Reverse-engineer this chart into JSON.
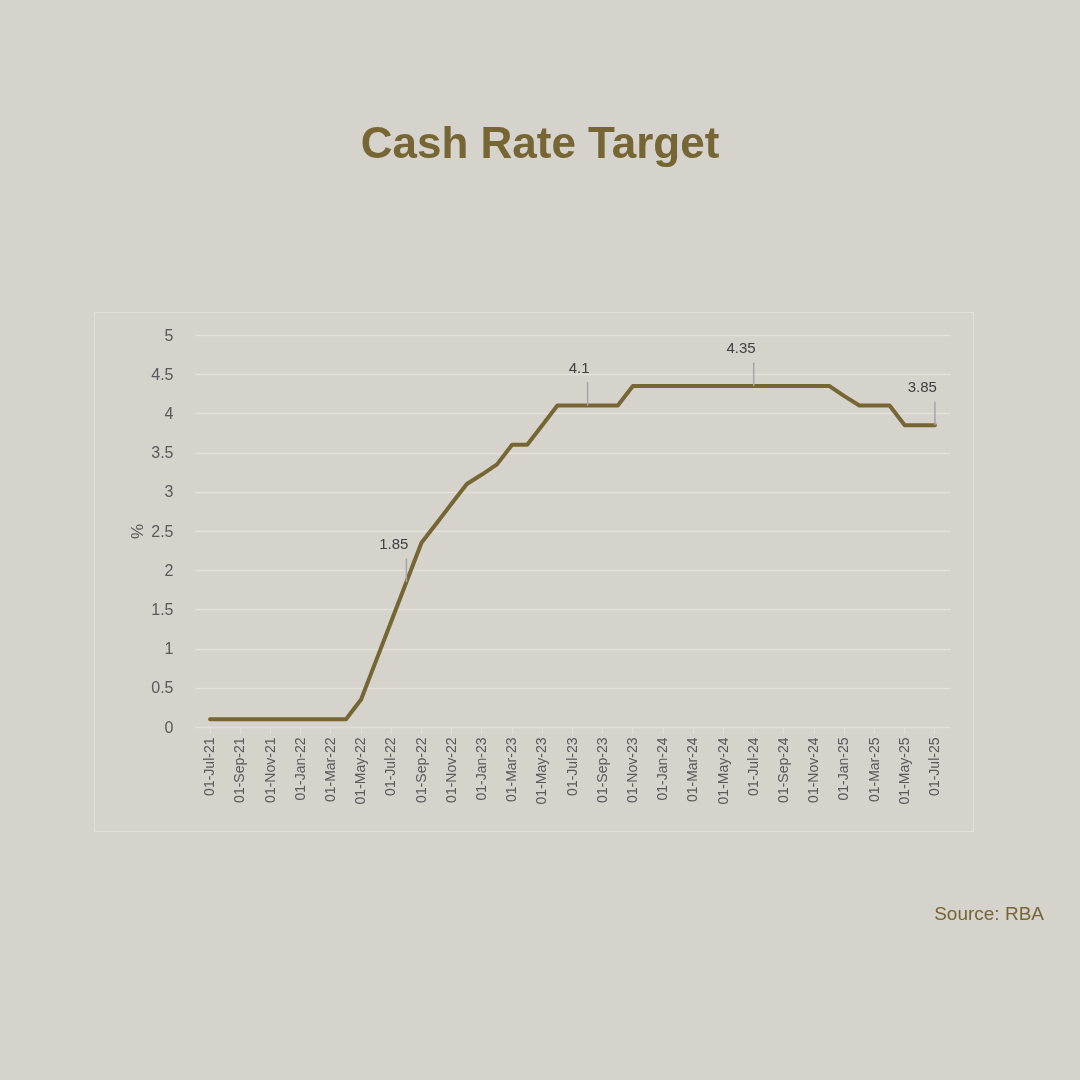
{
  "chart_data": {
    "type": "line",
    "title": "Cash Rate Target",
    "ylabel": "%",
    "categories": [
      "01-Jul-21",
      null,
      "01-Sep-21",
      null,
      "01-Nov-21",
      null,
      "01-Jan-22",
      null,
      "01-Mar-22",
      null,
      "01-May-22",
      null,
      "01-Jul-22",
      null,
      "01-Sep-22",
      null,
      "01-Nov-22",
      null,
      "01-Jan-23",
      null,
      "01-Mar-23",
      null,
      "01-May-23",
      null,
      "01-Jul-23",
      null,
      "01-Sep-23",
      null,
      "01-Nov-23",
      null,
      "01-Jan-24",
      null,
      "01-Mar-24",
      null,
      "01-May-24",
      null,
      "01-Jul-24",
      null,
      "01-Sep-24",
      null,
      "01-Nov-24",
      null,
      "01-Jan-25",
      null,
      "01-Mar-25",
      null,
      "01-May-25",
      null,
      "01-Jul-25"
    ],
    "series": [
      {
        "color": "#756634",
        "values": [
          0.1,
          0.1,
          0.1,
          0.1,
          0.1,
          0.1,
          0.1,
          0.1,
          0.1,
          0.1,
          0.35,
          0.85,
          1.35,
          1.85,
          2.35,
          2.6,
          2.85,
          3.1,
          3.22,
          3.35,
          3.6,
          3.6,
          3.85,
          4.1,
          4.1,
          4.1,
          4.1,
          4.1,
          4.35,
          4.35,
          4.35,
          4.35,
          4.35,
          4.35,
          4.35,
          4.35,
          4.35,
          4.35,
          4.35,
          4.35,
          4.35,
          4.35,
          4.22,
          4.1,
          4.1,
          4.1,
          3.85,
          3.85,
          3.85
        ],
        "value_labels": [
          null,
          null,
          null,
          null,
          null,
          null,
          null,
          null,
          null,
          null,
          null,
          null,
          null,
          "1.85",
          null,
          null,
          null,
          null,
          null,
          null,
          null,
          null,
          null,
          null,
          null,
          "4.1",
          null,
          null,
          null,
          null,
          null,
          null,
          null,
          null,
          null,
          null,
          "4.35",
          null,
          null,
          null,
          null,
          null,
          null,
          null,
          null,
          null,
          null,
          null,
          "3.85"
        ]
      }
    ],
    "ylim": [
      0,
      5
    ],
    "yticks": [
      0,
      0.5,
      1,
      1.5,
      2,
      2.5,
      3,
      3.5,
      4,
      4.5,
      5
    ],
    "grid": "y",
    "legend": false,
    "marker": "none",
    "line_style": "solid",
    "annotations": [
      "Source: RBA"
    ]
  }
}
